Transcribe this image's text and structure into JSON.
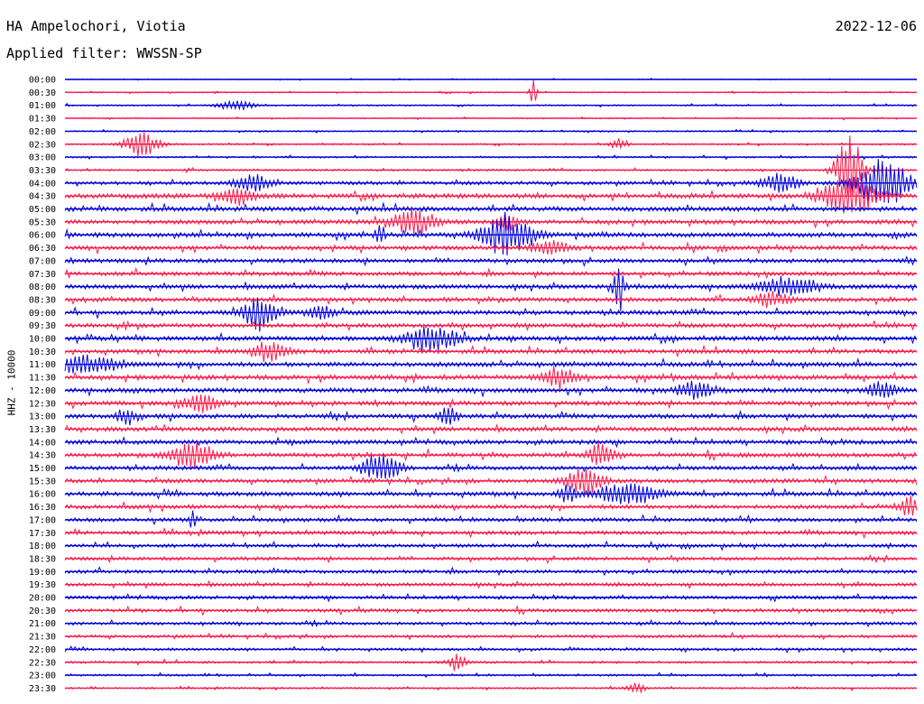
{
  "header": {
    "station": "HA Ampelochori, Viotia",
    "date": "2022-12-06",
    "filter": "Applied filter: WWSSN-SP"
  },
  "chart_data": {
    "type": "line",
    "title": "HA Ampelochori, Viotia",
    "ylabel": "HHZ - 10000",
    "colors": [
      "#0000dd",
      "#ff1a4a"
    ],
    "rows": [
      "00:00",
      "00:30",
      "01:00",
      "01:30",
      "02:00",
      "02:30",
      "03:00",
      "03:30",
      "04:00",
      "04:30",
      "05:00",
      "05:30",
      "06:00",
      "06:30",
      "07:00",
      "07:30",
      "08:00",
      "08:30",
      "09:00",
      "09:30",
      "10:00",
      "10:30",
      "11:00",
      "11:30",
      "12:00",
      "12:30",
      "13:00",
      "13:30",
      "14:00",
      "14:30",
      "15:00",
      "15:30",
      "16:00",
      "16:30",
      "17:00",
      "17:30",
      "18:00",
      "18:30",
      "19:00",
      "19:30",
      "20:00",
      "20:30",
      "21:00",
      "21:30",
      "22:00",
      "22:30",
      "23:00",
      "23:30"
    ],
    "noise_level": [
      0.3,
      0.4,
      0.5,
      0.4,
      0.5,
      0.5,
      0.6,
      0.7,
      1.2,
      1.6,
      1.6,
      1.5,
      1.6,
      1.5,
      1.4,
      1.4,
      1.5,
      1.5,
      1.5,
      1.5,
      1.6,
      1.5,
      1.6,
      1.6,
      1.6,
      1.5,
      1.5,
      1.5,
      1.5,
      1.5,
      1.4,
      1.4,
      1.5,
      1.4,
      1.3,
      1.3,
      1.2,
      1.2,
      1.2,
      1.2,
      1.2,
      1.2,
      1.1,
      1.0,
      0.9,
      0.8,
      0.7,
      0.6
    ],
    "events": [
      {
        "row": 1,
        "t": 0.55,
        "amp": 14,
        "dur": 0.004
      },
      {
        "row": 2,
        "t": 0.2,
        "amp": 6,
        "dur": 0.02
      },
      {
        "row": 5,
        "t": 0.09,
        "amp": 14,
        "dur": 0.02
      },
      {
        "row": 5,
        "t": 0.65,
        "amp": 6,
        "dur": 0.01
      },
      {
        "row": 7,
        "t": 0.92,
        "amp": 40,
        "dur": 0.015
      },
      {
        "row": 8,
        "t": 0.22,
        "amp": 10,
        "dur": 0.02
      },
      {
        "row": 8,
        "t": 0.84,
        "amp": 12,
        "dur": 0.02
      },
      {
        "row": 8,
        "t": 0.96,
        "amp": 28,
        "dur": 0.03
      },
      {
        "row": 9,
        "t": 0.92,
        "amp": 22,
        "dur": 0.03
      },
      {
        "row": 9,
        "t": 0.2,
        "amp": 10,
        "dur": 0.02
      },
      {
        "row": 11,
        "t": 0.41,
        "amp": 14,
        "dur": 0.025
      },
      {
        "row": 11,
        "t": 0.52,
        "amp": 10,
        "dur": 0.01
      },
      {
        "row": 12,
        "t": 0.52,
        "amp": 24,
        "dur": 0.03
      },
      {
        "row": 12,
        "t": 0.37,
        "amp": 10,
        "dur": 0.006
      },
      {
        "row": 13,
        "t": 0.57,
        "amp": 8,
        "dur": 0.02
      },
      {
        "row": 16,
        "t": 0.65,
        "amp": 30,
        "dur": 0.006
      },
      {
        "row": 16,
        "t": 0.85,
        "amp": 12,
        "dur": 0.03
      },
      {
        "row": 17,
        "t": 0.83,
        "amp": 8,
        "dur": 0.02
      },
      {
        "row": 18,
        "t": 0.23,
        "amp": 20,
        "dur": 0.02
      },
      {
        "row": 18,
        "t": 0.3,
        "amp": 8,
        "dur": 0.015
      },
      {
        "row": 20,
        "t": 0.43,
        "amp": 14,
        "dur": 0.03
      },
      {
        "row": 21,
        "t": 0.24,
        "amp": 10,
        "dur": 0.02
      },
      {
        "row": 22,
        "t": 0.02,
        "amp": 10,
        "dur": 0.04
      },
      {
        "row": 23,
        "t": 0.58,
        "amp": 12,
        "dur": 0.02
      },
      {
        "row": 24,
        "t": 0.74,
        "amp": 10,
        "dur": 0.02
      },
      {
        "row": 24,
        "t": 0.96,
        "amp": 10,
        "dur": 0.015
      },
      {
        "row": 25,
        "t": 0.16,
        "amp": 10,
        "dur": 0.02
      },
      {
        "row": 26,
        "t": 0.07,
        "amp": 8,
        "dur": 0.01
      },
      {
        "row": 26,
        "t": 0.45,
        "amp": 10,
        "dur": 0.01
      },
      {
        "row": 29,
        "t": 0.15,
        "amp": 14,
        "dur": 0.025
      },
      {
        "row": 29,
        "t": 0.63,
        "amp": 14,
        "dur": 0.015
      },
      {
        "row": 30,
        "t": 0.37,
        "amp": 18,
        "dur": 0.02
      },
      {
        "row": 31,
        "t": 0.61,
        "amp": 16,
        "dur": 0.02
      },
      {
        "row": 32,
        "t": 0.66,
        "amp": 12,
        "dur": 0.035
      },
      {
        "row": 32,
        "t": 0.59,
        "amp": 10,
        "dur": 0.01
      },
      {
        "row": 33,
        "t": 0.99,
        "amp": 12,
        "dur": 0.01
      },
      {
        "row": 34,
        "t": 0.15,
        "amp": 10,
        "dur": 0.004
      },
      {
        "row": 45,
        "t": 0.46,
        "amp": 10,
        "dur": 0.01
      },
      {
        "row": 47,
        "t": 0.67,
        "amp": 6,
        "dur": 0.01
      }
    ]
  }
}
